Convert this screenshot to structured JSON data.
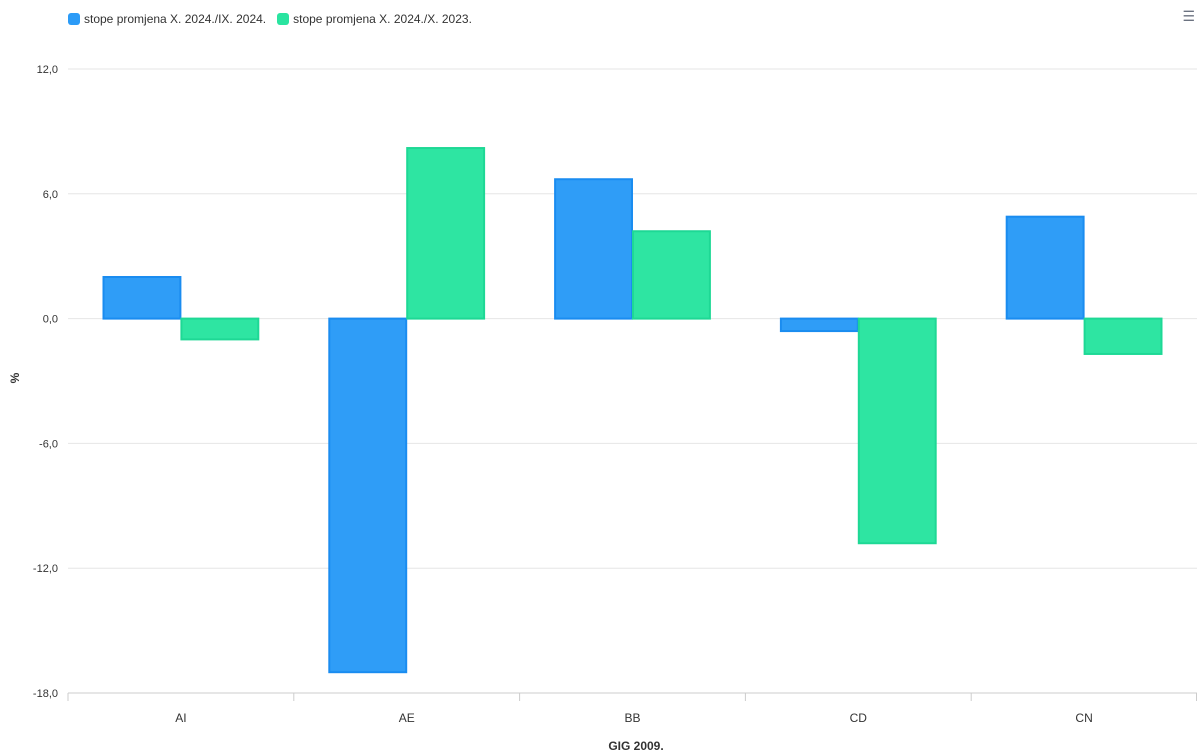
{
  "menu_icon": "hamburger-menu-icon",
  "colors": {
    "series1": "#2b9bf7",
    "series2": "#2ae4a0",
    "grid": "#e6e6e6",
    "text": "#333333"
  },
  "chart_data": {
    "type": "bar",
    "title": "",
    "xlabel": "GIG 2009.",
    "ylabel": "%",
    "categories": [
      "AI",
      "AE",
      "BB",
      "CD",
      "CN"
    ],
    "series": [
      {
        "name": "stope promjena X. 2024./IX. 2024.",
        "values": [
          2.0,
          -17.0,
          6.7,
          -0.6,
          4.9
        ]
      },
      {
        "name": "stope promjena X. 2024./X. 2023.",
        "values": [
          -1.0,
          8.2,
          4.2,
          -10.8,
          -1.7
        ]
      }
    ],
    "ylim": [
      -18,
      12
    ],
    "yticks": [
      12,
      6,
      0,
      -6,
      -12,
      -18
    ],
    "ytick_labels": [
      "12,0",
      "6,0",
      "0,0",
      "-6,0",
      "-12,0",
      "-18,0"
    ],
    "grid": true,
    "legend_position": "top-left"
  }
}
